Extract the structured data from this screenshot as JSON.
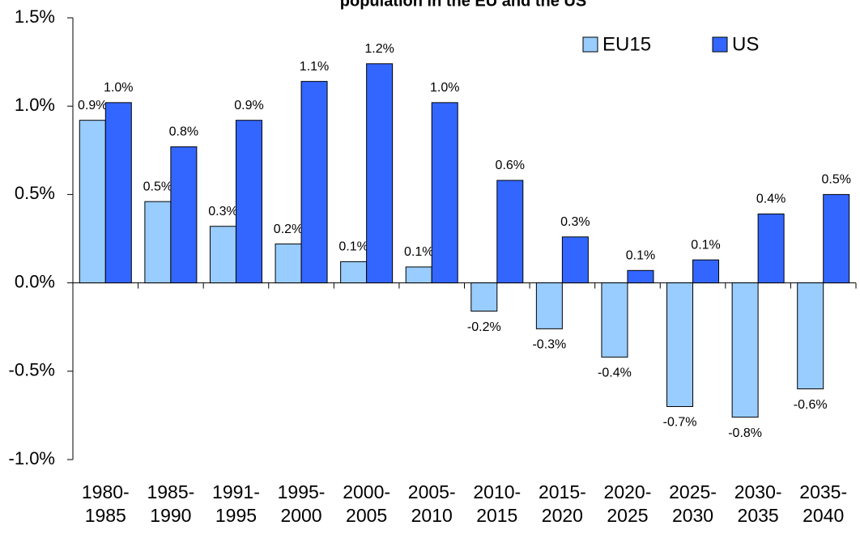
{
  "chart_data": {
    "type": "bar",
    "title": "population in the EU and the US",
    "categories": [
      "1980-\n1985",
      "1985-\n1990",
      "1991-\n1995",
      "1995-\n2000",
      "2000-\n2005",
      "2005-\n2010",
      "2010-\n2015",
      "2015-\n2020",
      "2020-\n2025",
      "2025-\n2030",
      "2030-\n2035",
      "2035-\n2040"
    ],
    "series": [
      {
        "name": "EU15",
        "color": "#99ccff",
        "values": [
          0.92,
          0.46,
          0.32,
          0.22,
          0.12,
          0.09,
          -0.16,
          -0.26,
          -0.42,
          -0.7,
          -0.76,
          -0.6
        ],
        "value_labels": [
          "0.9%",
          "0.5%",
          "0.3%",
          "0.2%",
          "0.1%",
          "0.1%",
          "-0.2%",
          "-0.3%",
          "-0.4%",
          "-0.7%",
          "-0.8%",
          "-0.6%"
        ]
      },
      {
        "name": "US",
        "color": "#3366ff",
        "values": [
          1.02,
          0.77,
          0.92,
          1.14,
          1.24,
          1.02,
          0.58,
          0.26,
          0.07,
          0.13,
          0.39,
          0.5
        ],
        "value_labels": [
          "1.0%",
          "0.8%",
          "0.9%",
          "1.1%",
          "1.2%",
          "1.0%",
          "0.6%",
          "0.3%",
          "0.1%",
          "0.1%",
          "0.4%",
          "0.5%"
        ]
      }
    ],
    "ylim": [
      -1.0,
      1.5
    ],
    "yticks": [
      {
        "value": -1.0,
        "label": "-1.0%"
      },
      {
        "value": -0.5,
        "label": "-0.5%"
      },
      {
        "value": 0,
        "label": "0.0%"
      },
      {
        "value": 0.5,
        "label": "0.5%"
      },
      {
        "value": 1.0,
        "label": "1.0%"
      },
      {
        "value": 1.5,
        "label": "1.5%"
      }
    ],
    "grid": false,
    "legend": "top-right"
  }
}
